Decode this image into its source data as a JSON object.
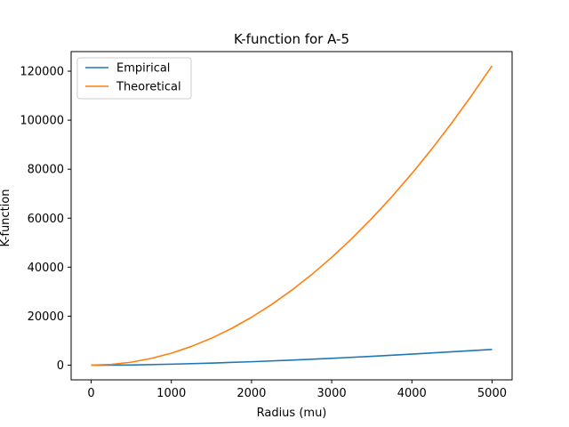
{
  "chart_data": {
    "type": "line",
    "title": "K-function for A-5",
    "xlabel": "Radius (mu)",
    "ylabel": "K-function",
    "xlim": [
      -250,
      5250
    ],
    "ylim": [
      -6000,
      128000
    ],
    "xticks": [
      0,
      1000,
      2000,
      3000,
      4000,
      5000
    ],
    "yticks": [
      0,
      20000,
      40000,
      60000,
      80000,
      100000,
      120000
    ],
    "legend": "upper-left",
    "grid": false,
    "series": [
      {
        "name": "Empirical",
        "color": "#1f77b4",
        "x": [
          0,
          500,
          1000,
          1500,
          2000,
          2500,
          3000,
          3500,
          4000,
          4500,
          5000
        ],
        "y": [
          0,
          50,
          400,
          850,
          1400,
          2050,
          2800,
          3600,
          4500,
          5450,
          6400
        ]
      },
      {
        "name": "Theoretical",
        "color": "#ff7f0e",
        "x": [
          0,
          250,
          500,
          750,
          1000,
          1250,
          1500,
          1750,
          2000,
          2250,
          2500,
          2750,
          3000,
          3250,
          3500,
          3750,
          4000,
          4250,
          4500,
          4750,
          5000
        ],
        "y": [
          0,
          306,
          1222,
          2750,
          4889,
          7639,
          11000,
          14972,
          19556,
          24750,
          30556,
          36972,
          44000,
          51639,
          59889,
          68750,
          78222,
          88306,
          99000,
          110306,
          122222
        ]
      }
    ]
  }
}
